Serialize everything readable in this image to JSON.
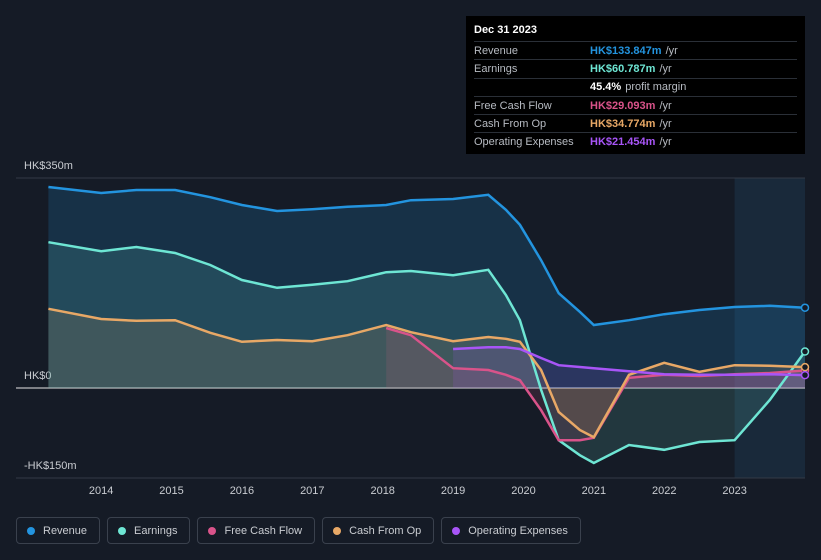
{
  "chart_data": {
    "type": "area-line",
    "x": [
      2013.25,
      2014.0,
      2014.5,
      2015.05,
      2015.55,
      2016.0,
      2016.5,
      2017.0,
      2017.5,
      2018.05,
      2018.4,
      2019.0,
      2019.5,
      2019.75,
      2019.95,
      2020.25,
      2020.5,
      2020.8,
      2021.0,
      2021.5,
      2022.0,
      2022.5,
      2023.0,
      2023.5,
      2024.0
    ],
    "xlim": [
      2012.79,
      2024.0
    ],
    "xticks": [
      2014,
      2015,
      2016,
      2017,
      2018,
      2019,
      2020,
      2021,
      2022,
      2023
    ],
    "ylim": [
      -150,
      350
    ],
    "yticks": [
      {
        "value": -150,
        "label": "-HK$150m"
      },
      {
        "value": 0,
        "label": "HK$0"
      },
      {
        "value": 350,
        "label": "HK$350m"
      }
    ],
    "forecast_start": 2023.0,
    "series": [
      {
        "name": "Revenue",
        "color": "#2394df",
        "values": [
          335,
          325,
          330,
          330,
          318,
          305,
          295,
          298,
          302,
          305,
          313,
          315,
          322,
          297,
          272,
          213,
          158,
          127,
          105,
          113,
          123,
          130,
          135,
          137,
          133.847
        ]
      },
      {
        "name": "Earnings",
        "color": "#6ee6d4",
        "values": [
          243,
          228,
          235,
          225,
          205,
          180,
          167,
          172,
          178,
          193,
          195,
          188,
          197,
          155,
          113,
          -3,
          -87,
          -112,
          -125,
          -95,
          -103,
          -90,
          -87,
          -20,
          60.787
        ]
      },
      {
        "name": "Free Cash Flow",
        "color": "#d9538a",
        "values": [
          null,
          null,
          null,
          null,
          null,
          null,
          null,
          null,
          null,
          100,
          88,
          33,
          30,
          22,
          13,
          -37,
          -87,
          -87,
          -83,
          17,
          22,
          20,
          23,
          25,
          29.093
        ]
      },
      {
        "name": "Cash From Op",
        "color": "#e8a866",
        "values": [
          132,
          115,
          112,
          113,
          92,
          77,
          80,
          78,
          88,
          105,
          93,
          78,
          85,
          82,
          77,
          30,
          -40,
          -70,
          -82,
          22,
          42,
          27,
          38,
          37,
          34.774
        ]
      },
      {
        "name": "Operating Expenses",
        "color": "#a855f7",
        "values": [
          null,
          null,
          null,
          null,
          null,
          null,
          null,
          null,
          null,
          null,
          null,
          65,
          68,
          68,
          65,
          50,
          38,
          35,
          33,
          28,
          23,
          22,
          22,
          23,
          21.454
        ]
      }
    ],
    "tooltip": {
      "date": "Dec 31 2023",
      "rows": [
        {
          "label": "Revenue",
          "value": "HK$133.847m",
          "unit": "/yr",
          "color": "#2394df"
        },
        {
          "label": "Earnings",
          "value": "HK$60.787m",
          "unit": "/yr",
          "color": "#6ee6d4"
        },
        {
          "value": "45.4%",
          "unit": "profit margin",
          "color": "#ffffff"
        },
        {
          "label": "Free Cash Flow",
          "value": "HK$29.093m",
          "unit": "/yr",
          "color": "#d9538a"
        },
        {
          "label": "Cash From Op",
          "value": "HK$34.774m",
          "unit": "/yr",
          "color": "#e8a866"
        },
        {
          "label": "Operating Expenses",
          "value": "HK$21.454m",
          "unit": "/yr",
          "color": "#a855f7"
        }
      ]
    }
  }
}
